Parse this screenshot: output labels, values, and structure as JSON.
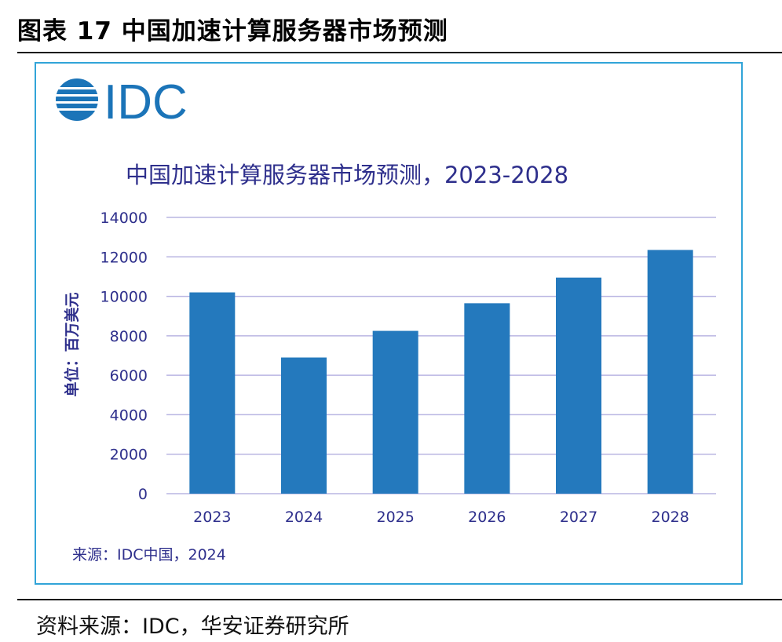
{
  "figure": {
    "title": "图表 17 中国加速计算服务器市场预测",
    "source_note": "资料来源：IDC，华安证券研究所"
  },
  "logo": {
    "text": "IDC"
  },
  "colors": {
    "bar": "#2479bd",
    "grid": "#b9b5e2",
    "text_navy": "#2e2f8c",
    "frame": "#31a4d8",
    "logo": "#1b74b8"
  },
  "chart_data": {
    "type": "bar",
    "title": "中国加速计算服务器市场预测，2023-2028",
    "ylabel": "单位：百万美元",
    "xlabel": "",
    "categories": [
      "2023",
      "2024",
      "2025",
      "2026",
      "2027",
      "2028"
    ],
    "values": [
      10200,
      6900,
      8250,
      9650,
      10950,
      12350
    ],
    "ylim": [
      0,
      14000
    ],
    "yticks": [
      "0",
      "2000",
      "4000",
      "6000",
      "8000",
      "10000",
      "12000",
      "14000"
    ],
    "grid": true,
    "source": "来源：IDC中国，2024"
  }
}
